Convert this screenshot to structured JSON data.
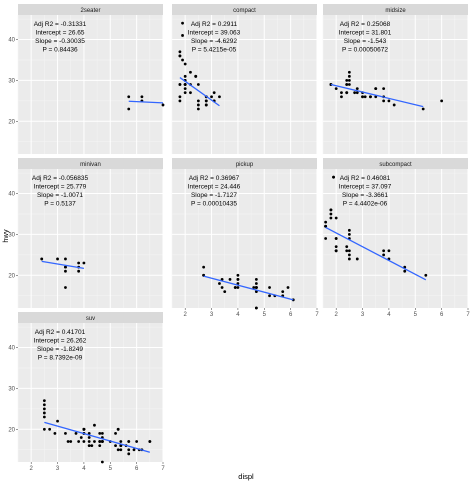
{
  "chart_data": {
    "type": "scatter",
    "xlabel": "displ",
    "ylabel": "hwy",
    "xlim": [
      1.5,
      7
    ],
    "ylim": [
      12,
      46
    ],
    "x_ticks": [
      "2",
      "3",
      "4",
      "5",
      "6",
      "7"
    ],
    "y_ticks": [
      "20",
      "30",
      "40"
    ],
    "grid": true,
    "point_color": "#000000",
    "line_color": "#3366FF",
    "panels": [
      {
        "strip": "2seater",
        "annotations": [
          "Adj R2 =  -0.31331",
          "Intercept = 26.65",
          "Slope = -0.30035",
          "P = 0.84436"
        ],
        "fit": {
          "x": [
            5.7,
            7.0
          ],
          "y": [
            24.9,
            24.5
          ]
        },
        "points": [
          [
            5.7,
            26
          ],
          [
            5.7,
            23
          ],
          [
            6.2,
            26
          ],
          [
            6.2,
            25
          ],
          [
            7.0,
            24
          ]
        ]
      },
      {
        "strip": "compact",
        "annotations": [
          "Adj R2 =  0.2911",
          "Intercept = 39.063",
          "Slope = -4.6292",
          "P = 5.4215e-05"
        ],
        "fit": {
          "x": [
            1.8,
            3.3
          ],
          "y": [
            30.7,
            23.8
          ]
        },
        "points": [
          [
            1.8,
            29
          ],
          [
            1.8,
            29
          ],
          [
            2.0,
            31
          ],
          [
            2.0,
            30
          ],
          [
            2.8,
            26
          ],
          [
            2.8,
            26
          ],
          [
            3.1,
            27
          ],
          [
            1.8,
            26
          ],
          [
            1.8,
            25
          ],
          [
            2.0,
            28
          ],
          [
            2.0,
            27
          ],
          [
            2.8,
            25
          ],
          [
            2.8,
            25
          ],
          [
            3.1,
            25
          ],
          [
            3.1,
            25
          ],
          [
            2.2,
            27
          ],
          [
            2.2,
            29
          ],
          [
            2.4,
            31
          ],
          [
            2.4,
            31
          ],
          [
            3.0,
            26
          ],
          [
            3.3,
            26
          ],
          [
            1.8,
            36
          ],
          [
            1.8,
            36
          ],
          [
            1.9,
            44
          ],
          [
            2.0,
            29
          ],
          [
            2.0,
            29
          ],
          [
            2.0,
            29
          ],
          [
            2.5,
            29
          ],
          [
            2.5,
            23
          ],
          [
            2.5,
            24
          ],
          [
            2.8,
            24
          ],
          [
            2.8,
            24
          ],
          [
            1.8,
            37
          ],
          [
            2.0,
            29
          ],
          [
            1.9,
            35
          ],
          [
            2.0,
            34
          ],
          [
            2.5,
            25
          ],
          [
            2.0,
            30
          ],
          [
            1.9,
            41
          ],
          [
            2.2,
            32
          ]
        ]
      },
      {
        "strip": "midsize",
        "annotations": [
          "Adj R2 =  0.25068",
          "Intercept = 31.801",
          "Slope = -1.543",
          "P = 0.00050672"
        ],
        "fit": {
          "x": [
            1.8,
            5.3
          ],
          "y": [
            29.0,
            23.6
          ]
        },
        "points": [
          [
            1.8,
            29
          ],
          [
            1.8,
            29
          ],
          [
            2.0,
            28
          ],
          [
            2.4,
            27
          ],
          [
            2.5,
            30
          ],
          [
            2.5,
            29
          ],
          [
            3.1,
            26
          ],
          [
            3.3,
            26
          ],
          [
            3.5,
            28
          ],
          [
            3.8,
            28
          ],
          [
            3.8,
            26
          ],
          [
            2.4,
            29
          ],
          [
            2.4,
            30
          ],
          [
            2.5,
            31
          ],
          [
            2.5,
            32
          ],
          [
            2.8,
            28
          ],
          [
            3.0,
            26
          ],
          [
            3.3,
            26
          ],
          [
            3.5,
            26
          ],
          [
            4.0,
            25
          ],
          [
            5.3,
            23
          ],
          [
            2.2,
            26
          ],
          [
            2.2,
            27
          ],
          [
            2.4,
            29
          ],
          [
            2.4,
            27
          ],
          [
            3.0,
            27
          ],
          [
            3.5,
            28
          ],
          [
            3.8,
            25
          ],
          [
            4.2,
            24
          ],
          [
            1.8,
            29
          ],
          [
            2.8,
            27
          ],
          [
            3.0,
            26
          ],
          [
            2.7,
            27
          ],
          [
            6.0,
            25
          ]
        ]
      },
      {
        "strip": "minivan",
        "annotations": [
          "Adj R2 =  -0.056835",
          "Intercept = 25.779",
          "Slope = -1.0071",
          "P = 0.5137"
        ],
        "fit": {
          "x": [
            2.4,
            4.0
          ],
          "y": [
            23.4,
            21.7
          ]
        },
        "points": [
          [
            2.4,
            24
          ],
          [
            3.0,
            24
          ],
          [
            3.3,
            17
          ],
          [
            3.3,
            22
          ],
          [
            3.3,
            24
          ],
          [
            3.3,
            22
          ],
          [
            3.3,
            21
          ],
          [
            3.8,
            23
          ],
          [
            3.8,
            21
          ],
          [
            3.8,
            22
          ],
          [
            4.0,
            23
          ]
        ]
      },
      {
        "strip": "pickup",
        "annotations": [
          "Adj R2 =  0.36967",
          "Intercept = 24.446",
          "Slope = -1.7127",
          "P = 0.00010435"
        ],
        "fit": {
          "x": [
            2.7,
            6.1
          ],
          "y": [
            19.8,
            14.0
          ]
        },
        "points": [
          [
            2.7,
            20
          ],
          [
            2.7,
            22
          ],
          [
            3.7,
            19
          ],
          [
            3.9,
            17
          ],
          [
            3.9,
            17
          ],
          [
            4.7,
            17
          ],
          [
            4.7,
            12
          ],
          [
            4.7,
            17
          ],
          [
            5.2,
            17
          ],
          [
            5.2,
            15
          ],
          [
            5.7,
            16
          ],
          [
            5.9,
            17
          ],
          [
            4.7,
            12
          ],
          [
            4.7,
            16
          ],
          [
            5.7,
            15
          ],
          [
            6.1,
            14
          ],
          [
            4.0,
            17
          ],
          [
            4.0,
            19
          ],
          [
            4.6,
            17
          ],
          [
            5.4,
            15
          ],
          [
            2.7,
            20
          ],
          [
            3.4,
            19
          ],
          [
            4.0,
            20
          ],
          [
            4.7,
            17
          ],
          [
            4.7,
            18
          ],
          [
            3.4,
            17
          ],
          [
            4.0,
            19
          ],
          [
            4.0,
            18
          ],
          [
            4.7,
            19
          ],
          [
            4.7,
            17
          ],
          [
            3.3,
            18
          ],
          [
            3.5,
            16
          ]
        ]
      },
      {
        "strip": "subcompact",
        "annotations": [
          "Adj R2 =  0.46081",
          "Intercept = 37.097",
          "Slope = -3.3661",
          "P = 4.4402e-06"
        ],
        "fit": {
          "x": [
            1.6,
            5.4
          ],
          "y": [
            31.7,
            18.9
          ]
        },
        "points": [
          [
            3.8,
            26
          ],
          [
            3.8,
            25
          ],
          [
            4.0,
            26
          ],
          [
            4.0,
            24
          ],
          [
            4.6,
            21
          ],
          [
            4.6,
            22
          ],
          [
            5.4,
            20
          ],
          [
            1.6,
            33
          ],
          [
            1.6,
            32
          ],
          [
            1.6,
            32
          ],
          [
            1.6,
            29
          ],
          [
            1.6,
            32
          ],
          [
            1.8,
            34
          ],
          [
            1.8,
            36
          ],
          [
            1.8,
            36
          ],
          [
            2.0,
            29
          ],
          [
            2.4,
            26
          ],
          [
            2.4,
            27
          ],
          [
            2.5,
            30
          ],
          [
            2.5,
            31
          ],
          [
            2.0,
            26
          ],
          [
            2.0,
            29
          ],
          [
            2.5,
            26
          ],
          [
            2.5,
            24
          ],
          [
            2.5,
            29
          ],
          [
            2.0,
            26
          ],
          [
            1.9,
            44
          ],
          [
            1.9,
            44
          ],
          [
            2.0,
            27
          ],
          [
            2.0,
            26
          ],
          [
            2.8,
            24
          ],
          [
            2.0,
            34
          ],
          [
            2.5,
            25
          ],
          [
            1.8,
            35
          ]
        ]
      },
      {
        "strip": "suv",
        "annotations": [
          "Adj R2 =  0.41701",
          "Intercept = 26.262",
          "Slope = -1.8249",
          "P = 8.7392e-09"
        ],
        "fit": {
          "x": [
            2.5,
            6.5
          ],
          "y": [
            21.7,
            14.4
          ]
        },
        "points": [
          [
            5.3,
            20
          ],
          [
            5.3,
            15
          ],
          [
            5.3,
            20
          ],
          [
            5.7,
            17
          ],
          [
            6.0,
            17
          ],
          [
            5.7,
            17
          ],
          [
            6.5,
            17
          ],
          [
            4.2,
            17
          ],
          [
            4.4,
            17
          ],
          [
            5.7,
            14
          ],
          [
            3.9,
            18
          ],
          [
            4.7,
            17
          ],
          [
            4.7,
            17
          ],
          [
            5.9,
            15
          ],
          [
            4.0,
            17
          ],
          [
            4.0,
            20
          ],
          [
            4.6,
            19
          ],
          [
            5.0,
            17
          ],
          [
            3.0,
            22
          ],
          [
            3.7,
            19
          ],
          [
            4.0,
            20
          ],
          [
            4.7,
            17
          ],
          [
            4.7,
            19
          ],
          [
            4.7,
            12
          ],
          [
            5.7,
            15
          ],
          [
            6.1,
            15
          ],
          [
            5.4,
            15
          ],
          [
            2.5,
            20
          ],
          [
            2.5,
            27
          ],
          [
            2.5,
            26
          ],
          [
            2.5,
            25
          ],
          [
            2.5,
            23
          ],
          [
            2.7,
            20
          ],
          [
            3.4,
            17
          ],
          [
            4.0,
            19
          ],
          [
            4.7,
            17
          ],
          [
            4.0,
            20
          ],
          [
            4.2,
            19
          ],
          [
            4.6,
            17
          ],
          [
            5.4,
            17
          ],
          [
            3.5,
            17
          ],
          [
            4.2,
            18
          ],
          [
            4.0,
            20
          ],
          [
            4.6,
            17
          ],
          [
            5.4,
            16
          ],
          [
            5.2,
            19
          ],
          [
            5.6,
            16
          ],
          [
            4.7,
            18
          ],
          [
            5.2,
            16
          ],
          [
            4.3,
            16
          ],
          [
            4.4,
            21
          ],
          [
            2.5,
            24
          ],
          [
            3.3,
            19
          ],
          [
            4.0,
            19
          ],
          [
            6.2,
            15
          ],
          [
            6.5,
            17
          ],
          [
            2.9,
            19
          ],
          [
            3.8,
            17
          ],
          [
            4.2,
            16
          ],
          [
            4.6,
            16
          ],
          [
            5.4,
            16
          ]
        ]
      }
    ]
  }
}
